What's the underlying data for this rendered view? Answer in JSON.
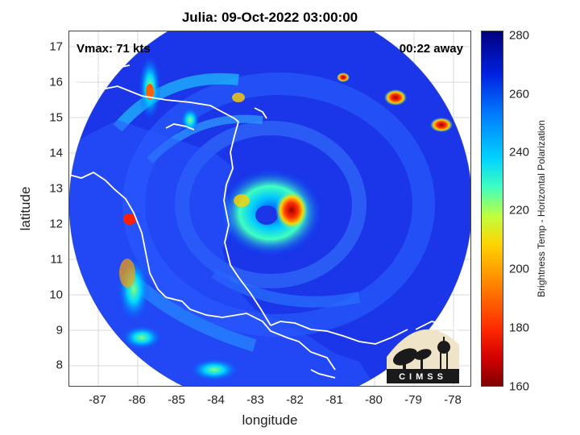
{
  "title": "Julia: 09-Oct-2022 03:00:00",
  "annotations": {
    "vmax": "Vmax: 71 kts",
    "time_away": "00:22 away"
  },
  "axes": {
    "xlabel": "longitude",
    "ylabel": "latitude",
    "xlim": [
      -87.8,
      -77.6
    ],
    "ylim": [
      7.4,
      17.4
    ],
    "xticks": [
      "-87",
      "-86",
      "-85",
      "-84",
      "-83",
      "-82",
      "-81",
      "-80",
      "-79",
      "-78"
    ],
    "yticks": [
      "8",
      "9",
      "10",
      "11",
      "12",
      "13",
      "14",
      "15",
      "16",
      "17"
    ],
    "grid": true
  },
  "colorbar": {
    "label": "Brightness Temp - Horizontal Polarization",
    "ticks": [
      "160",
      "180",
      "200",
      "220",
      "240",
      "260",
      "280"
    ],
    "range": [
      160,
      280
    ],
    "colormap": "jet"
  },
  "storm_center": {
    "lon": -82.5,
    "lat": 12.4
  },
  "logo": {
    "text": "CIMSS"
  },
  "colors": {
    "background_cold": "#1a33e6",
    "eyewall": "#d40000",
    "coast": "#ffffff"
  }
}
